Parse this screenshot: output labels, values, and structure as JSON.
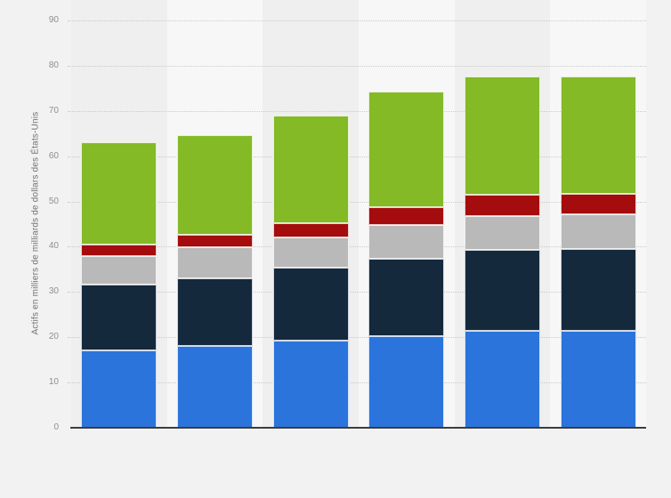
{
  "axis": {
    "y_title": "Actifs en milliers de milliards de dollars des États-Unis",
    "y_ticks": [
      0,
      10,
      20,
      30,
      40,
      50,
      60,
      70,
      80,
      90
    ],
    "y_min": 0,
    "y_max": 90
  },
  "chart_data": {
    "type": "bar",
    "stacked": true,
    "title": "",
    "xlabel": "",
    "ylabel": "Actifs en milliers de milliards de dollars des États-Unis",
    "ylim": [
      0,
      90
    ],
    "grid": "horizontal-dotted",
    "legend_position": "none-visible",
    "x_tick_labels_visible": false,
    "categories": [
      "",
      "",
      "",
      "",
      "",
      ""
    ],
    "series": [
      {
        "name": "blue-bottom-segment",
        "color": "#2B74DB",
        "values": [
          17.1,
          18.0,
          19.2,
          20.2,
          21.4,
          21.4
        ]
      },
      {
        "name": "dark-navy-segment",
        "color": "#15293D",
        "values": [
          14.6,
          15.1,
          16.2,
          17.1,
          17.8,
          18.1
        ]
      },
      {
        "name": "gray-segment",
        "color": "#B9B9B9",
        "values": [
          6.3,
          6.7,
          6.6,
          7.4,
          7.6,
          7.6
        ]
      },
      {
        "name": "dark-red-segment",
        "color": "#A50C0D",
        "values": [
          2.5,
          2.9,
          3.2,
          4.0,
          4.6,
          4.6
        ]
      },
      {
        "name": "green-top-segment",
        "color": "#83BA25",
        "values": [
          22.5,
          21.9,
          23.8,
          25.6,
          26.2,
          26.0
        ]
      }
    ],
    "totals": [
      63.0,
      64.6,
      69.0,
      74.3,
      77.6,
      77.7
    ]
  },
  "colors": {
    "page_background": "#f2f2f2",
    "column_stripe_dark": "#efefef",
    "column_stripe_light": "#f7f7f8",
    "gridline": "#c9c9c9",
    "axis_line": "#3d3d3d",
    "tick_label": "#8f8f8f",
    "axis_title": "#737373"
  }
}
